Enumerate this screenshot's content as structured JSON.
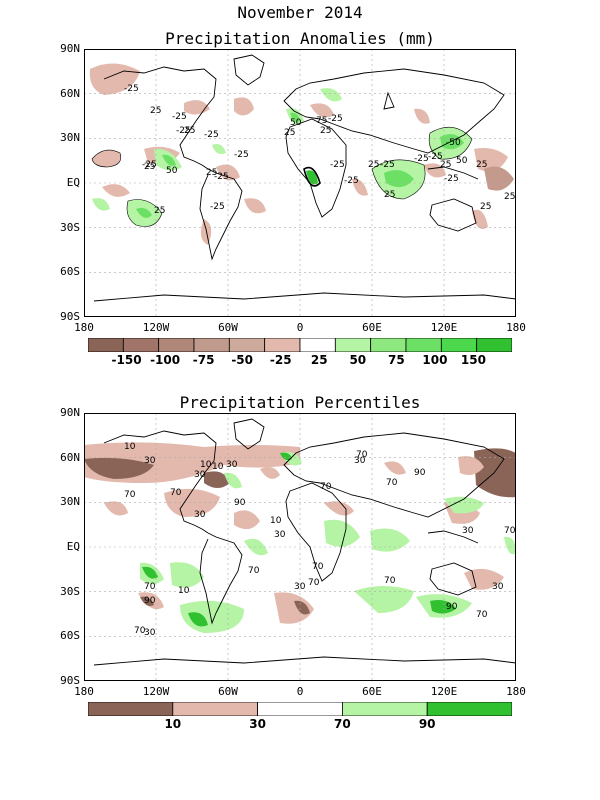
{
  "header": {
    "line1": "November 2014",
    "line2": "Precipitation Anomalies (mm)"
  },
  "panel2_title": "Precipitation Percentiles",
  "lat_labels": [
    "90N",
    "60N",
    "30N",
    "EQ",
    "30S",
    "60S",
    "90S"
  ],
  "lon_labels": [
    "180",
    "120W",
    "60W",
    "0",
    "60E",
    "120E",
    "180"
  ],
  "colors": {
    "dry3": "#8b6458",
    "dry2": "#a67c70",
    "dry1": "#c49a8c",
    "dry0": "#e2b9ac",
    "white": "#ffffff",
    "wet0": "#b4f4a4",
    "wet1": "#8ee880",
    "wet2": "#6ce064",
    "wet3": "#4cd84c",
    "wet4": "#30c030",
    "grid": "#aaaaaa"
  },
  "colorbar1": {
    "labels": [
      "-150",
      "-100",
      "-75",
      "-50",
      "-25",
      "25",
      "50",
      "75",
      "100",
      "150"
    ],
    "colors": [
      "#8b6458",
      "#a07468",
      "#b0887a",
      "#c09a8c",
      "#ceaa9c",
      "#e2b9ac",
      "#ffffff",
      "#b4f4a4",
      "#8ee880",
      "#6ce064",
      "#4cd84c",
      "#30c030"
    ]
  },
  "colorbar2": {
    "labels": [
      "10",
      "30",
      "70",
      "90"
    ],
    "colors": [
      "#8b6458",
      "#e2b9ac",
      "#ffffff",
      "#b4f4a4",
      "#30c030"
    ]
  },
  "anomaly_contour_labels": [
    "-25",
    "25",
    "-25",
    "-25",
    "25",
    "25",
    "50",
    "-25",
    "25",
    "-25",
    "-25",
    "-25",
    "-25",
    "25",
    "50",
    "75",
    "25",
    "25",
    "-25",
    "-25",
    "-25",
    "25",
    "-25",
    "-25",
    "25",
    "-25",
    "-50",
    "-25",
    "50",
    "25",
    "25",
    "25",
    "25"
  ],
  "percentile_contour_labels": [
    "10",
    "30",
    "10",
    "10",
    "30",
    "30",
    "70",
    "70",
    "90",
    "30",
    "70",
    "70",
    "70",
    "90",
    "10",
    "30",
    "30",
    "70",
    "70",
    "70",
    "30",
    "70",
    "30",
    "70",
    "90",
    "70",
    "30",
    "70",
    "90",
    "70",
    "10",
    "30"
  ]
}
